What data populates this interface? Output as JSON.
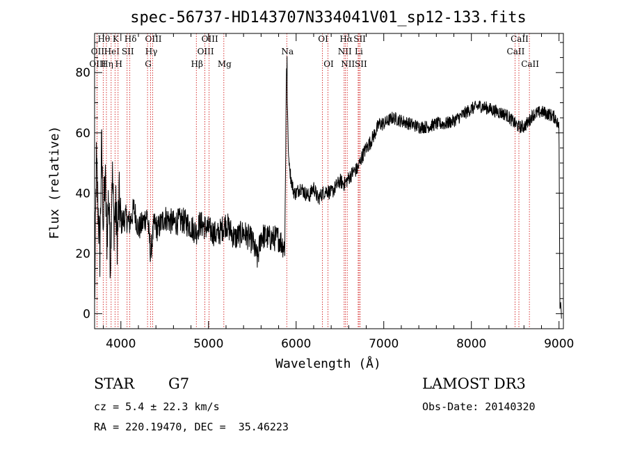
{
  "chart_data": {
    "type": "line",
    "title": "spec-56737-HD143707N334041V01_sp12-133.fits",
    "xlabel": "Wavelength (Å)",
    "ylabel": "Flux (relative)",
    "xlim": [
      3700,
      9050
    ],
    "ylim": [
      -5,
      93
    ],
    "xticks": [
      "4000",
      "5000",
      "6000",
      "7000",
      "8000",
      "9000"
    ],
    "yticks": [
      "0",
      "20",
      "40",
      "60",
      "80"
    ],
    "series": [
      {
        "color": "#000000",
        "x": [
          3700,
          3720,
          3740,
          3760,
          3780,
          3800,
          3820,
          3840,
          3860,
          3880,
          3900,
          3920,
          3940,
          3960,
          3980,
          4000,
          4050,
          4100,
          4150,
          4200,
          4250,
          4300,
          4340,
          4380,
          4420,
          4500,
          4600,
          4700,
          4800,
          4860,
          4900,
          5000,
          5100,
          5200,
          5300,
          5400,
          5500,
          5560,
          5600,
          5700,
          5800,
          5870,
          5880,
          5889,
          5893,
          5896,
          5900,
          5910,
          5920,
          5940,
          5960,
          5980,
          6000,
          6050,
          6100,
          6150,
          6200,
          6250,
          6300,
          6350,
          6400,
          6450,
          6500,
          6550,
          6600,
          6650,
          6700,
          6750,
          6800,
          6850,
          6900,
          6950,
          7000,
          7100,
          7200,
          7300,
          7400,
          7500,
          7600,
          7700,
          7800,
          7900,
          8000,
          8100,
          8200,
          8300,
          8400,
          8500,
          8540,
          8600,
          8660,
          8700,
          8800,
          8900,
          8960,
          9000,
          9010,
          9020,
          9030
        ],
        "y": [
          2,
          50,
          35,
          20,
          55,
          30,
          45,
          25,
          40,
          18,
          48,
          30,
          35,
          25,
          38,
          30,
          32,
          30,
          35,
          28,
          30,
          33,
          20,
          30,
          28,
          32,
          30,
          31,
          29,
          27,
          30,
          28,
          26,
          30,
          25,
          27,
          24,
          18,
          26,
          25,
          25,
          22,
          50,
          85,
          78,
          82,
          70,
          55,
          50,
          45,
          42,
          40,
          40,
          42,
          40,
          39,
          42,
          38,
          40,
          41,
          40,
          42,
          44,
          43,
          45,
          47,
          48,
          52,
          55,
          57,
          60,
          63,
          63,
          65,
          64,
          63,
          62,
          62,
          63,
          63,
          64,
          66,
          68,
          69,
          68,
          67,
          66,
          63,
          62,
          62,
          64,
          66,
          67,
          66,
          65,
          62,
          2,
          4,
          -2
        ]
      }
    ],
    "lines": [
      {
        "label": "Hθ",
        "x": 3798,
        "row": 0
      },
      {
        "label": "OII",
        "x": 3727,
        "row": 1
      },
      {
        "label": "OIII",
        "x": 3727,
        "row": 2
      },
      {
        "label": "Hη",
        "x": 3835,
        "row": 2
      },
      {
        "label": "HeI",
        "x": 3889,
        "row": 1
      },
      {
        "label": "K",
        "x": 3933,
        "row": 0
      },
      {
        "label": "H",
        "x": 3968,
        "row": 2
      },
      {
        "label": "SII",
        "x": 4071,
        "row": 1
      },
      {
        "label": "Hδ",
        "x": 4102,
        "row": 0
      },
      {
        "label": "OIII",
        "x": 4363,
        "row": 0
      },
      {
        "label": "Hγ",
        "x": 4340,
        "row": 1
      },
      {
        "label": "G",
        "x": 4304,
        "row": 2
      },
      {
        "label": "Hβ",
        "x": 4861,
        "row": 2
      },
      {
        "label": "OIII",
        "x": 4959,
        "row": 1
      },
      {
        "label": "OIII",
        "x": 5007,
        "row": 0
      },
      {
        "label": "Mg",
        "x": 5175,
        "row": 2
      },
      {
        "label": "Na",
        "x": 5893,
        "row": 1
      },
      {
        "label": "OI",
        "x": 6300,
        "row": 0
      },
      {
        "label": "OI",
        "x": 6363,
        "row": 2
      },
      {
        "label": "NII",
        "x": 6548,
        "row": 1
      },
      {
        "label": "NII",
        "x": 6583,
        "row": 2
      },
      {
        "label": "Hα",
        "x": 6563,
        "row": 0
      },
      {
        "label": "SII",
        "x": 6717,
        "row": 0
      },
      {
        "label": "SII",
        "x": 6731,
        "row": 2
      },
      {
        "label": "Li",
        "x": 6708,
        "row": 1
      },
      {
        "label": "CaII",
        "x": 8498,
        "row": 1
      },
      {
        "label": "CaII",
        "x": 8542,
        "row": 0
      },
      {
        "label": "CaII",
        "x": 8662,
        "row": 2
      }
    ],
    "grid": false,
    "legend": "none"
  },
  "info": {
    "class": "STAR",
    "subclass": "G7",
    "survey": "LAMOST DR3",
    "cz": "cz = 5.4 ± 22.3 km/s",
    "obs_date": "Obs-Date: 20140320",
    "coords": "RA = 220.19470, DEC =  35.46223"
  }
}
